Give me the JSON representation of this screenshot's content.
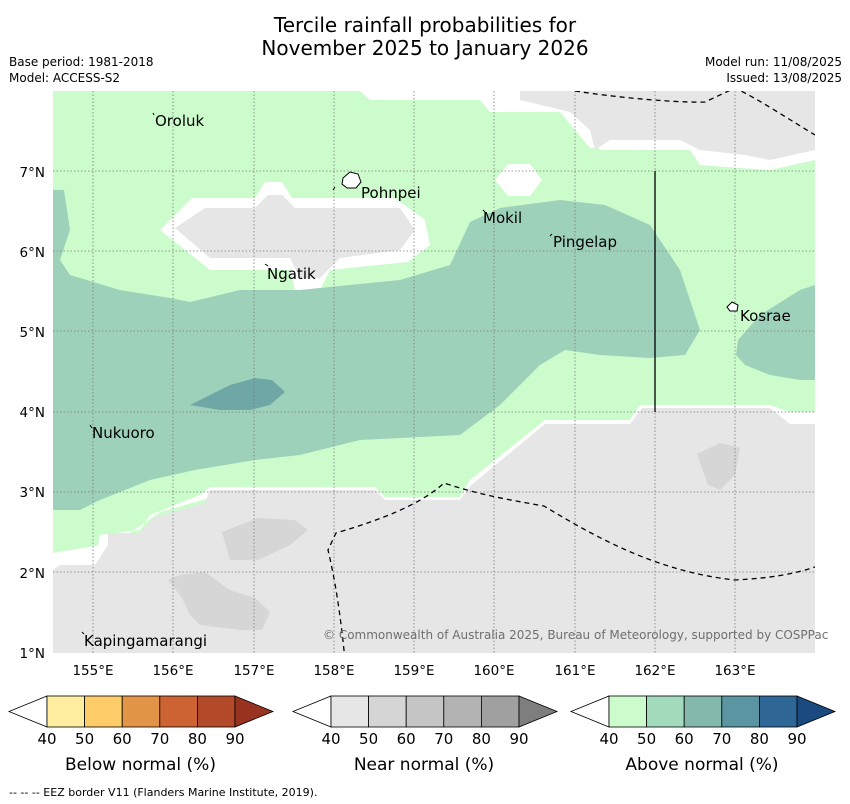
{
  "title_line1": "Tercile rainfall probabilities for",
  "title_line2": "November 2025 to January 2026",
  "meta_left": {
    "base_period": "Base period: 1981-2018",
    "model": "Model: ACCESS-S2"
  },
  "meta_right": {
    "model_run": "Model run: 11/08/2025",
    "issued": "Issued: 13/08/2025"
  },
  "map": {
    "lat_labels": [
      "7°N",
      "6°N",
      "5°N",
      "4°N",
      "3°N",
      "2°N",
      "1°N"
    ],
    "lon_labels": [
      "155°E",
      "156°E",
      "157°E",
      "158°E",
      "159°E",
      "160°E",
      "161°E",
      "162°E",
      "163°E"
    ],
    "places": [
      "Oroluk",
      "Pohnpei",
      "Mokil",
      "Pingelap",
      "Ngatik",
      "Kosrae",
      "Nukuoro",
      "Kapingamarangi"
    ],
    "copyright": "© Commonwealth of Australia 2025, Bureau of Meteorology, supported by COSPPac",
    "colors": {
      "above_50": "#ccfccc",
      "above_60": "#9ed1ba",
      "above_70": "#6fa7a6",
      "near_normal": "#e6e6e6",
      "near_50": "#d6d6d6",
      "no_data": "#ffffff"
    }
  },
  "colorbars": [
    {
      "title": "Below normal (%)",
      "ticks": [
        "40",
        "50",
        "60",
        "70",
        "80",
        "90"
      ],
      "colors": [
        "#ffffff",
        "#ffeea0",
        "#fecc68",
        "#e39547",
        "#cd6333",
        "#b24a2a",
        "#993321"
      ]
    },
    {
      "title": "Near normal (%)",
      "ticks": [
        "40",
        "50",
        "60",
        "70",
        "80",
        "90"
      ],
      "colors": [
        "#ffffff",
        "#e6e6e6",
        "#d5d5d5",
        "#c5c5c5",
        "#b3b3b3",
        "#a0a0a0",
        "#7e7e7e"
      ]
    },
    {
      "title": "Above normal (%)",
      "ticks": [
        "40",
        "50",
        "60",
        "70",
        "80",
        "90"
      ],
      "colors": [
        "#ffffff",
        "#ccfccc",
        "#a2dabc",
        "#84b8ac",
        "#5b95a2",
        "#2e6696",
        "#1a4a80"
      ]
    }
  ],
  "footnote": "--  --  -- EEZ border V11 (Flanders Marine Institute, 2019)."
}
